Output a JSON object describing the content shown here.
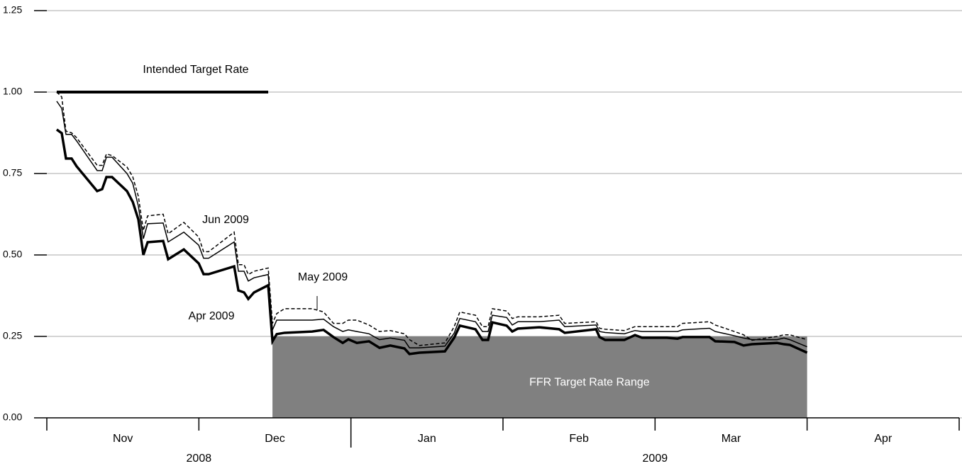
{
  "chart_data": {
    "type": "line",
    "categories": [
      "Nov",
      "Dec",
      "Jan",
      "Feb",
      "Mar",
      "Apr"
    ],
    "years": [
      "2008",
      "2009"
    ],
    "xlim": [
      0,
      6
    ],
    "ylim": [
      0,
      1.25
    ],
    "yticks": [
      {
        "value": 0,
        "label": "0.00"
      },
      0.25,
      {
        "value": 0.5,
        "label": "0.50"
      },
      0.75,
      {
        "value": 1,
        "label": "1.00"
      },
      1.25
    ],
    "grid": true,
    "bands": [
      {
        "label": "FFR Target Rate Range",
        "color": "#808080",
        "x": [
          1.484,
          5.0
        ],
        "y": [
          0,
          0.25
        ]
      }
    ],
    "series": [
      {
        "name": "Intended Target Rate",
        "color": "#000000",
        "line_width": 4,
        "dashed": false,
        "x": [
          0.065,
          1.456
        ],
        "values": [
          1,
          1
        ]
      },
      {
        "name": "Jun 2009",
        "color": "#000000",
        "line_width": 1.5,
        "dashed": true,
        "x": [
          0.065,
          0.098,
          0.126,
          0.163,
          0.196,
          0.331,
          0.364,
          0.392,
          0.429,
          0.527,
          0.565,
          0.602,
          0.635,
          0.663,
          0.765,
          0.798,
          0.901,
          0.999,
          1.031,
          1.064,
          1.232,
          1.26,
          1.297,
          1.325,
          1.363,
          1.456,
          1.484,
          1.512,
          1.563,
          1.745,
          1.82,
          1.885,
          1.946,
          1.983,
          2.039,
          2.119,
          2.188,
          2.259,
          2.352,
          2.385,
          2.45,
          2.618,
          2.679,
          2.716,
          2.819,
          2.865,
          2.902,
          2.93,
          3.024,
          3.061,
          3.098,
          3.238,
          3.369,
          3.406,
          3.612,
          3.635,
          3.672,
          3.798,
          3.868,
          3.915,
          4.078,
          4.148,
          4.181,
          4.358,
          4.396,
          4.522,
          4.582,
          4.638,
          4.802,
          4.848,
          4.886,
          5.0
        ],
        "values": [
          1.0,
          0.985,
          0.88,
          0.875,
          0.86,
          0.775,
          0.775,
          0.81,
          0.805,
          0.77,
          0.74,
          0.68,
          0.575,
          0.62,
          0.625,
          0.565,
          0.6,
          0.555,
          0.51,
          0.51,
          0.57,
          0.47,
          0.47,
          0.44,
          0.45,
          0.46,
          0.29,
          0.32,
          0.335,
          0.335,
          0.325,
          0.29,
          0.29,
          0.3,
          0.3,
          0.285,
          0.265,
          0.268,
          0.258,
          0.24,
          0.222,
          0.23,
          0.28,
          0.325,
          0.315,
          0.28,
          0.28,
          0.335,
          0.328,
          0.305,
          0.31,
          0.31,
          0.315,
          0.29,
          0.295,
          0.275,
          0.272,
          0.268,
          0.28,
          0.28,
          0.28,
          0.28,
          0.29,
          0.295,
          0.285,
          0.265,
          0.255,
          0.238,
          0.25,
          0.255,
          0.255,
          0.24
        ]
      },
      {
        "name": "May 2009",
        "color": "#000000",
        "line_width": 1.5,
        "dashed": false,
        "x": [
          0.065,
          0.098,
          0.126,
          0.163,
          0.196,
          0.331,
          0.364,
          0.392,
          0.429,
          0.527,
          0.565,
          0.602,
          0.635,
          0.663,
          0.765,
          0.798,
          0.901,
          0.999,
          1.031,
          1.064,
          1.232,
          1.26,
          1.297,
          1.325,
          1.363,
          1.456,
          1.484,
          1.512,
          1.563,
          1.745,
          1.82,
          1.885,
          1.946,
          1.983,
          2.039,
          2.119,
          2.188,
          2.259,
          2.352,
          2.385,
          2.45,
          2.618,
          2.679,
          2.716,
          2.819,
          2.865,
          2.902,
          2.93,
          3.024,
          3.061,
          3.098,
          3.238,
          3.369,
          3.406,
          3.612,
          3.635,
          3.672,
          3.798,
          3.868,
          3.915,
          4.078,
          4.148,
          4.181,
          4.358,
          4.396,
          4.522,
          4.582,
          4.638,
          4.802,
          4.848,
          4.886,
          5.0
        ],
        "values": [
          0.972,
          0.95,
          0.87,
          0.87,
          0.85,
          0.759,
          0.759,
          0.8,
          0.8,
          0.75,
          0.72,
          0.65,
          0.55,
          0.596,
          0.598,
          0.54,
          0.57,
          0.53,
          0.49,
          0.49,
          0.54,
          0.45,
          0.45,
          0.42,
          0.43,
          0.44,
          0.27,
          0.3,
          0.3,
          0.3,
          0.303,
          0.28,
          0.265,
          0.27,
          0.265,
          0.258,
          0.24,
          0.245,
          0.238,
          0.215,
          0.215,
          0.22,
          0.26,
          0.305,
          0.295,
          0.265,
          0.265,
          0.315,
          0.308,
          0.285,
          0.295,
          0.295,
          0.3,
          0.28,
          0.285,
          0.265,
          0.262,
          0.258,
          0.268,
          0.265,
          0.265,
          0.265,
          0.27,
          0.275,
          0.265,
          0.252,
          0.245,
          0.24,
          0.24,
          0.245,
          0.24,
          0.218
        ]
      },
      {
        "name": "Apr 2009",
        "color": "#000000",
        "line_width": 3.5,
        "dashed": false,
        "x": [
          0.065,
          0.098,
          0.126,
          0.163,
          0.196,
          0.331,
          0.364,
          0.392,
          0.429,
          0.527,
          0.565,
          0.602,
          0.635,
          0.663,
          0.765,
          0.798,
          0.901,
          0.999,
          1.031,
          1.064,
          1.232,
          1.26,
          1.297,
          1.325,
          1.363,
          1.456,
          1.484,
          1.512,
          1.563,
          1.745,
          1.82,
          1.885,
          1.946,
          1.983,
          2.039,
          2.119,
          2.188,
          2.259,
          2.352,
          2.385,
          2.45,
          2.618,
          2.679,
          2.716,
          2.819,
          2.865,
          2.902,
          2.93,
          3.024,
          3.061,
          3.098,
          3.238,
          3.369,
          3.406,
          3.612,
          3.635,
          3.672,
          3.798,
          3.868,
          3.915,
          4.078,
          4.148,
          4.181,
          4.358,
          4.396,
          4.522,
          4.582,
          4.638,
          4.802,
          4.848,
          4.886,
          5.0
        ],
        "values": [
          0.885,
          0.874,
          0.796,
          0.796,
          0.772,
          0.696,
          0.702,
          0.739,
          0.739,
          0.696,
          0.663,
          0.609,
          0.5,
          0.539,
          0.543,
          0.487,
          0.517,
          0.474,
          0.441,
          0.441,
          0.465,
          0.391,
          0.385,
          0.365,
          0.385,
          0.407,
          0.235,
          0.257,
          0.261,
          0.265,
          0.27,
          0.248,
          0.23,
          0.241,
          0.23,
          0.235,
          0.215,
          0.222,
          0.213,
          0.196,
          0.2,
          0.204,
          0.246,
          0.283,
          0.272,
          0.239,
          0.239,
          0.293,
          0.283,
          0.265,
          0.274,
          0.278,
          0.272,
          0.261,
          0.272,
          0.248,
          0.239,
          0.239,
          0.254,
          0.246,
          0.246,
          0.243,
          0.248,
          0.248,
          0.235,
          0.233,
          0.222,
          0.226,
          0.23,
          0.226,
          0.224,
          0.2
        ]
      }
    ]
  }
}
